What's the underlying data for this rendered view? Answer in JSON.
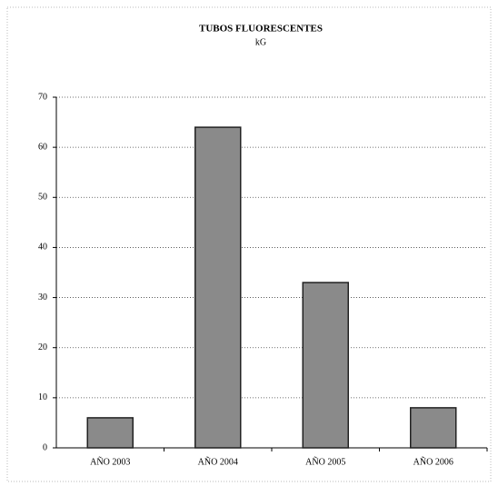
{
  "chart_data": {
    "type": "bar",
    "title": "TUBOS FLUORESCENTES",
    "subtitle": "kG",
    "categories": [
      "AÑO 2003",
      "AÑO 2004",
      "AÑO 2005",
      "AÑO 2006"
    ],
    "values": [
      6,
      64,
      33,
      8
    ],
    "color": "#8a8a8a",
    "ylim": [
      0,
      70
    ],
    "yticks": [
      0,
      10,
      20,
      30,
      40,
      50,
      60,
      70
    ],
    "grid": true
  }
}
